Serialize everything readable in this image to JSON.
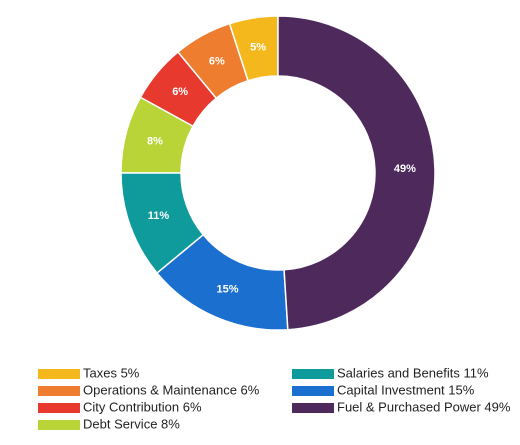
{
  "chart_data": {
    "type": "donut",
    "categories": [
      "Taxes 5%",
      "Operations & Maintenance 6%",
      "City Contribution  6%",
      "Debt Service 8%",
      "Salaries and Benefits 11%",
      "Capital Investment 15%",
      "Fuel & Purchased Power 49%"
    ],
    "values": [
      5,
      6,
      6,
      8,
      11,
      15,
      49
    ],
    "value_labels": [
      "5%",
      "6%",
      "6%",
      "8%",
      "11%",
      "15%",
      "49%"
    ],
    "colors": [
      "#f5b81c",
      "#ee7d30",
      "#e8392f",
      "#b8d436",
      "#0f9a9b",
      "#1b6fcf",
      "#4e2a5c"
    ],
    "legend": "bottom"
  }
}
